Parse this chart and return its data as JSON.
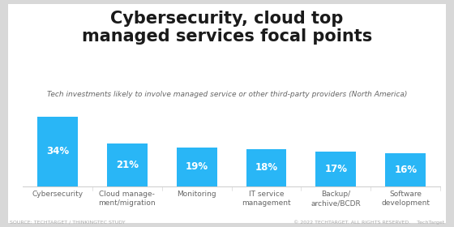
{
  "title_line1": "Cybersecurity, cloud top",
  "title_line2": "managed services focal points",
  "subtitle": "Tech investments likely to involve managed service or other third-party providers (North America)",
  "source": "SOURCE: TECHTARGET / THINKINGTEC STUDY",
  "copyright": "© 2022 TECHTARGET. ALL RIGHTS RESERVED.    TechTarget",
  "categories": [
    "Cybersecurity",
    "Cloud manage-\nment/migration",
    "Monitoring",
    "IT service\nmanagement",
    "Backup/\narchive/BCDR",
    "Software\ndevelopment"
  ],
  "values": [
    34,
    21,
    19,
    18,
    17,
    16
  ],
  "bar_color": "#29b6f6",
  "label_color": "#ffffff",
  "title_color": "#1a1a1a",
  "subtitle_color": "#666666",
  "bg_color": "#ffffff",
  "outer_bg_color": "#d8d8d8",
  "title_fontsize": 15,
  "subtitle_fontsize": 6.5,
  "label_fontsize": 8.5,
  "tick_fontsize": 6.5,
  "source_fontsize": 4.5,
  "ylim": [
    0,
    40
  ]
}
